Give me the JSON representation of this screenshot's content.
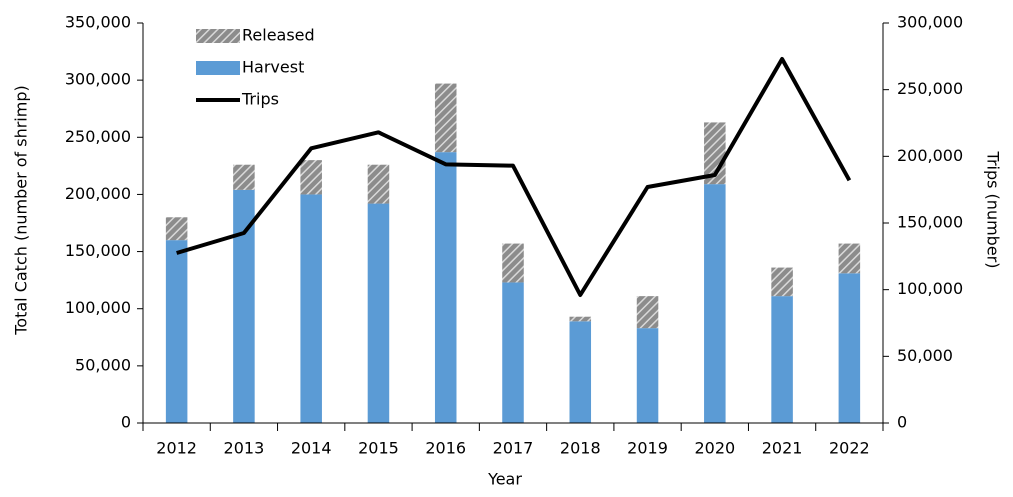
{
  "chart_data": {
    "type": "bar_line",
    "xlabel": "Year",
    "ylabel": "Total Catch (number of shrimp)",
    "y2label": "Trips (number)",
    "categories": [
      "2012",
      "2013",
      "2014",
      "2015",
      "2016",
      "2017",
      "2018",
      "2019",
      "2020",
      "2021",
      "2022"
    ],
    "series": [
      {
        "name": "Harvest",
        "type": "bar",
        "color": "#5b9bd5",
        "values": [
          160000,
          204000,
          200000,
          192000,
          237000,
          123000,
          89000,
          83000,
          209000,
          111000,
          131000
        ]
      },
      {
        "name": "Released",
        "type": "bar",
        "color": "#8c8c8c",
        "hatch": true,
        "values": [
          20000,
          22000,
          30000,
          34000,
          60000,
          34000,
          4000,
          28000,
          54000,
          25000,
          26000
        ]
      },
      {
        "name": "Trips",
        "type": "line",
        "axis": "y2",
        "color": "#000000",
        "values": [
          127500,
          142500,
          206000,
          218000,
          194000,
          193000,
          96000,
          177000,
          186000,
          273000,
          182000
        ]
      }
    ],
    "ylim": [
      0,
      350000
    ],
    "yticks": [
      0,
      {
        "value": 50000,
        "label": "50,000"
      },
      {
        "value": 100000,
        "label": "100,000"
      },
      {
        "value": 150000,
        "label": "150,000"
      },
      {
        "value": 200000,
        "label": "200,000"
      },
      {
        "value": 250000,
        "label": "250,000"
      },
      {
        "value": 300000,
        "label": "300,000"
      },
      {
        "value": 350000,
        "label": "350,000"
      }
    ],
    "y2lim": [
      0,
      300000
    ],
    "y2ticks": [
      0,
      {
        "value": 50000,
        "label": "50,000"
      },
      {
        "value": 100000,
        "label": "100,000"
      },
      {
        "value": 150000,
        "label": "150,000"
      },
      {
        "value": 200000,
        "label": "200,000"
      },
      {
        "value": 250000,
        "label": "250,000"
      },
      {
        "value": 300000,
        "label": "300,000"
      }
    ],
    "legend": "upper left",
    "grid": false
  }
}
